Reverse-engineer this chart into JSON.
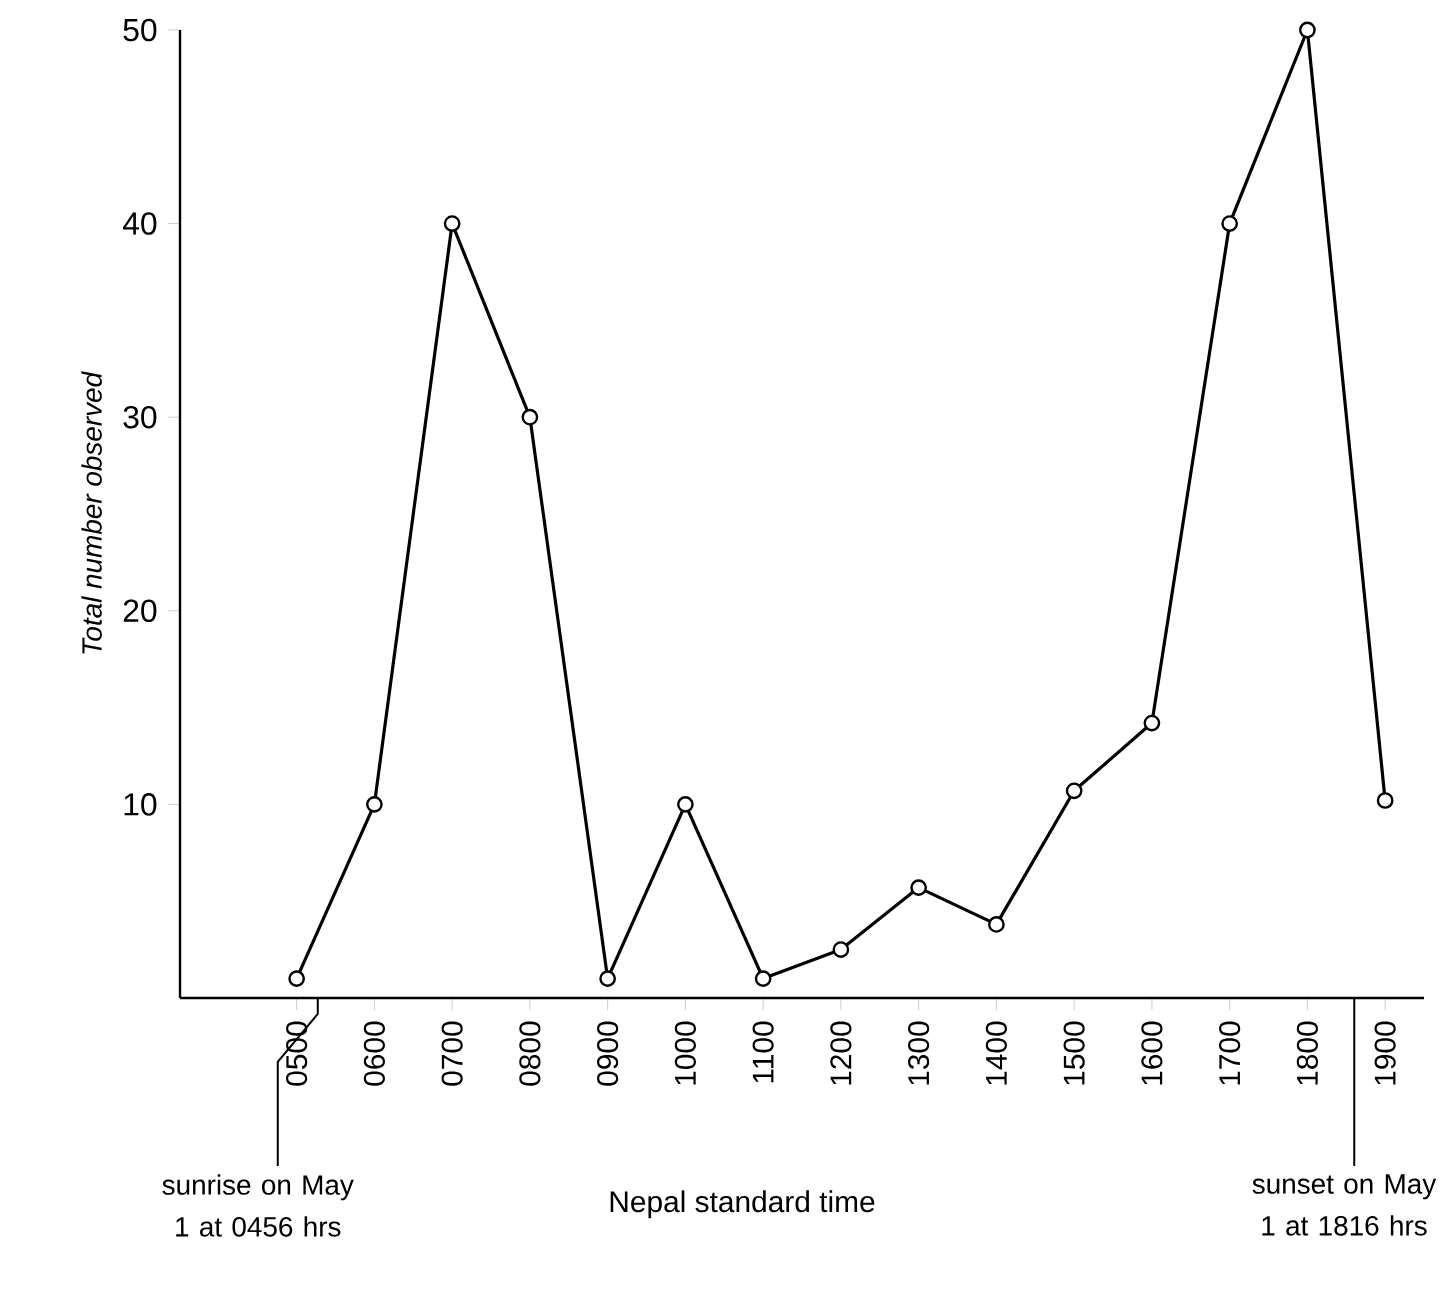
{
  "chart_data": {
    "type": "line",
    "xlabel": "Nepal standard time",
    "ylabel": "Total number observed",
    "categories": [
      "0500",
      "0600",
      "0700",
      "0800",
      "0900",
      "1000",
      "1100",
      "1200",
      "1300",
      "1400",
      "1500",
      "1600",
      "1700",
      "1800",
      "1900"
    ],
    "series": [
      {
        "color": "#000000",
        "values": [
          1,
          10,
          40,
          30,
          1,
          10,
          1,
          2.5,
          5.7,
          3.8,
          10.7,
          14.2,
          40,
          50,
          10.2
        ]
      }
    ],
    "ylim": [
      0,
      50
    ],
    "yticks": [
      10,
      20,
      30,
      40,
      50
    ],
    "annotations": [
      "sunrise on May 1 at 0456 hrs",
      "sunset on May 1 at 1816 hrs"
    ],
    "marker": "circle",
    "line_style": "solid"
  }
}
